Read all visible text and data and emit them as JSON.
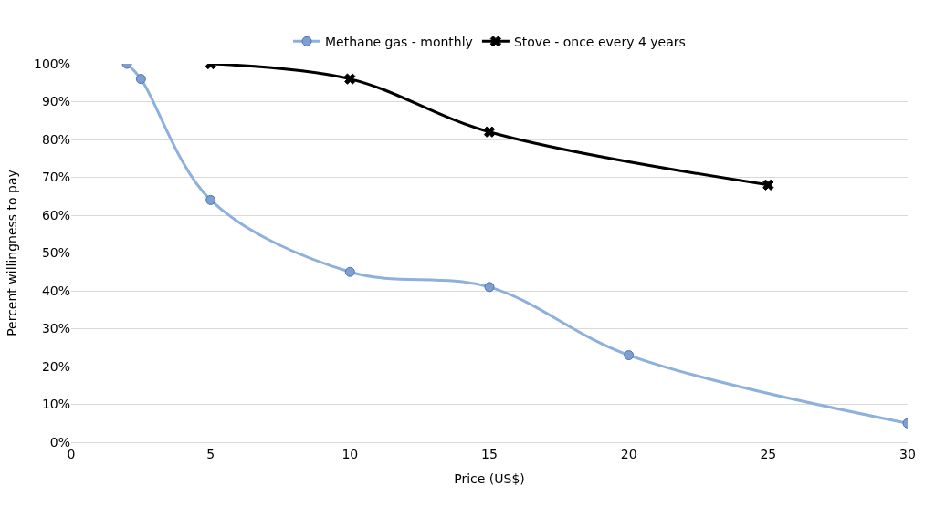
{
  "chart_data": {
    "type": "line",
    "xlabel": "Price (US$)",
    "ylabel": "Percent willingness to pay",
    "xlim": [
      0,
      30
    ],
    "xticks": [
      0,
      5,
      10,
      15,
      20,
      25,
      30
    ],
    "ylim": [
      0,
      100
    ],
    "yticks": [
      {
        "value": 0,
        "label": "0%"
      },
      {
        "value": 10,
        "label": "10%"
      },
      {
        "value": 20,
        "label": "20%"
      },
      {
        "value": 30,
        "label": "30%"
      },
      {
        "value": 40,
        "label": "40%"
      },
      {
        "value": 50,
        "label": "50%"
      },
      {
        "value": 60,
        "label": "60%"
      },
      {
        "value": 70,
        "label": "70%"
      },
      {
        "value": 80,
        "label": "80%"
      },
      {
        "value": 90,
        "label": "90%"
      },
      {
        "value": 100,
        "label": "100%"
      }
    ],
    "grid": "y",
    "legend": "top",
    "line_style": "solid",
    "series": [
      {
        "name": "Methane gas - monthly",
        "color": "#8eb0dc",
        "marker": "circle",
        "x": [
          2,
          2.5,
          5,
          10,
          15,
          20,
          30
        ],
        "values": [
          100,
          96,
          64,
          45,
          41,
          23,
          5
        ]
      },
      {
        "name": "Stove - once every 4 years",
        "color": "#000000",
        "marker": "cross",
        "x": [
          5,
          10,
          15,
          25
        ],
        "values": [
          100,
          96,
          82,
          68
        ]
      }
    ]
  }
}
